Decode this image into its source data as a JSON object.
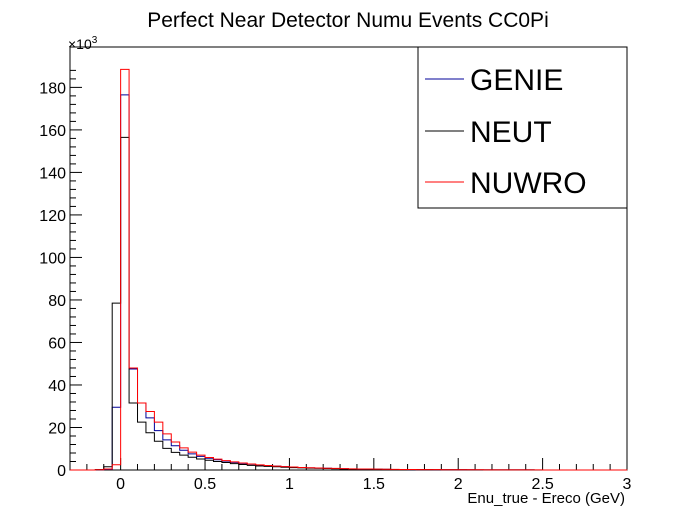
{
  "chart_data": {
    "type": "histogram",
    "title": "Perfect Near Detector Numu Events CC0Pi",
    "xlabel": "Enu_true - Ereco (GeV)",
    "ylabel": "",
    "y_multiplier_label": "×10",
    "y_multiplier_exponent": "3",
    "xlim": [
      -0.3,
      3.0
    ],
    "ylim": [
      0,
      199
    ],
    "x_ticks": [
      "0",
      "0.5",
      "1",
      "1.5",
      "2",
      "2.5",
      "3"
    ],
    "y_ticks": [
      "0",
      "20",
      "40",
      "60",
      "80",
      "100",
      "120",
      "140",
      "160",
      "180"
    ],
    "bin_edges": [
      -0.3,
      -0.25,
      -0.2,
      -0.15,
      -0.1,
      -0.05,
      0,
      0.05,
      0.1,
      0.15,
      0.2,
      0.25,
      0.3,
      0.35,
      0.4,
      0.45,
      0.5,
      0.55,
      0.6,
      0.65,
      0.7,
      0.75,
      0.8,
      0.85,
      0.9,
      0.95,
      1,
      1.05,
      1.1,
      1.15,
      1.2,
      1.25,
      1.3,
      1.35,
      1.4,
      1.45,
      1.5,
      1.55,
      1.6,
      1.65,
      1.7,
      1.75,
      1.8,
      1.85,
      1.9,
      1.95,
      2,
      2.05,
      2.1,
      2.15,
      2.2,
      2.25,
      2.3,
      2.35,
      2.4,
      2.45,
      2.5,
      2.55,
      2.6,
      2.65,
      2.7,
      2.75,
      2.8,
      2.85,
      2.9,
      2.95,
      3.0
    ],
    "series": [
      {
        "name": "GENIE",
        "color": "#000099",
        "values": [
          0,
          0,
          0,
          0.1,
          0.3,
          29.5,
          176.5,
          47.5,
          31.5,
          24.5,
          18.5,
          14.2,
          11.4,
          9.3,
          7.6,
          6.4,
          5.5,
          4.8,
          4.2,
          3.6,
          3.1,
          2.7,
          2.3,
          2.0,
          1.8,
          1.6,
          1.4,
          1.2,
          1.0,
          0.9,
          0.8,
          0.7,
          0.6,
          0.5,
          0.4,
          0.4,
          0.35,
          0.3,
          0.25,
          0.22,
          0.2,
          0.18,
          0.16,
          0.14,
          0.12,
          0.11,
          0.1,
          0.09,
          0.08,
          0.07,
          0.06,
          0.05,
          0.05,
          0.04,
          0.04,
          0.03,
          0.03,
          0.03,
          0.02,
          0.02,
          0.02,
          0.02,
          0.02,
          0.01,
          0.01,
          0.01
        ]
      },
      {
        "name": "NEUT",
        "color": "#000000",
        "values": [
          0,
          0,
          0,
          0.2,
          1.5,
          78.5,
          156.5,
          31.5,
          22.5,
          17.5,
          13.5,
          10.2,
          8.3,
          7.0,
          6.0,
          5.2,
          4.6,
          4.0,
          3.5,
          3.0,
          2.6,
          2.2,
          1.9,
          1.7,
          1.5,
          1.3,
          1.1,
          1.0,
          0.9,
          0.8,
          0.7,
          0.6,
          0.5,
          0.45,
          0.4,
          0.35,
          0.3,
          0.27,
          0.24,
          0.21,
          0.19,
          0.17,
          0.15,
          0.13,
          0.12,
          0.1,
          0.09,
          0.08,
          0.07,
          0.06,
          0.06,
          0.05,
          0.05,
          0.04,
          0.04,
          0.03,
          0.03,
          0.03,
          0.02,
          0.02,
          0.02,
          0.02,
          0.02,
          0.01,
          0.01,
          0.01
        ]
      },
      {
        "name": "NUWRO",
        "color": "#ff0000",
        "values": [
          0,
          0,
          0,
          0.1,
          0.5,
          2.5,
          188.5,
          48.0,
          31.5,
          27.5,
          22.5,
          17.0,
          13.2,
          10.4,
          8.4,
          7.0,
          5.9,
          5.1,
          4.4,
          3.8,
          3.3,
          2.8,
          2.4,
          2.1,
          1.8,
          1.6,
          1.4,
          1.2,
          1.05,
          0.95,
          0.85,
          0.75,
          0.65,
          0.55,
          0.5,
          0.45,
          0.4,
          0.35,
          0.3,
          0.26,
          0.23,
          0.2,
          0.18,
          0.16,
          0.14,
          0.12,
          0.11,
          0.1,
          0.09,
          0.08,
          0.07,
          0.06,
          0.05,
          0.05,
          0.04,
          0.04,
          0.03,
          0.03,
          0.03,
          0.02,
          0.02,
          0.02,
          0.02,
          0.01,
          0.01,
          0.01
        ]
      }
    ],
    "legend": {
      "position": "top-right",
      "entries": [
        "GENIE",
        "NEUT",
        "NUWRO"
      ]
    },
    "grid": false
  }
}
